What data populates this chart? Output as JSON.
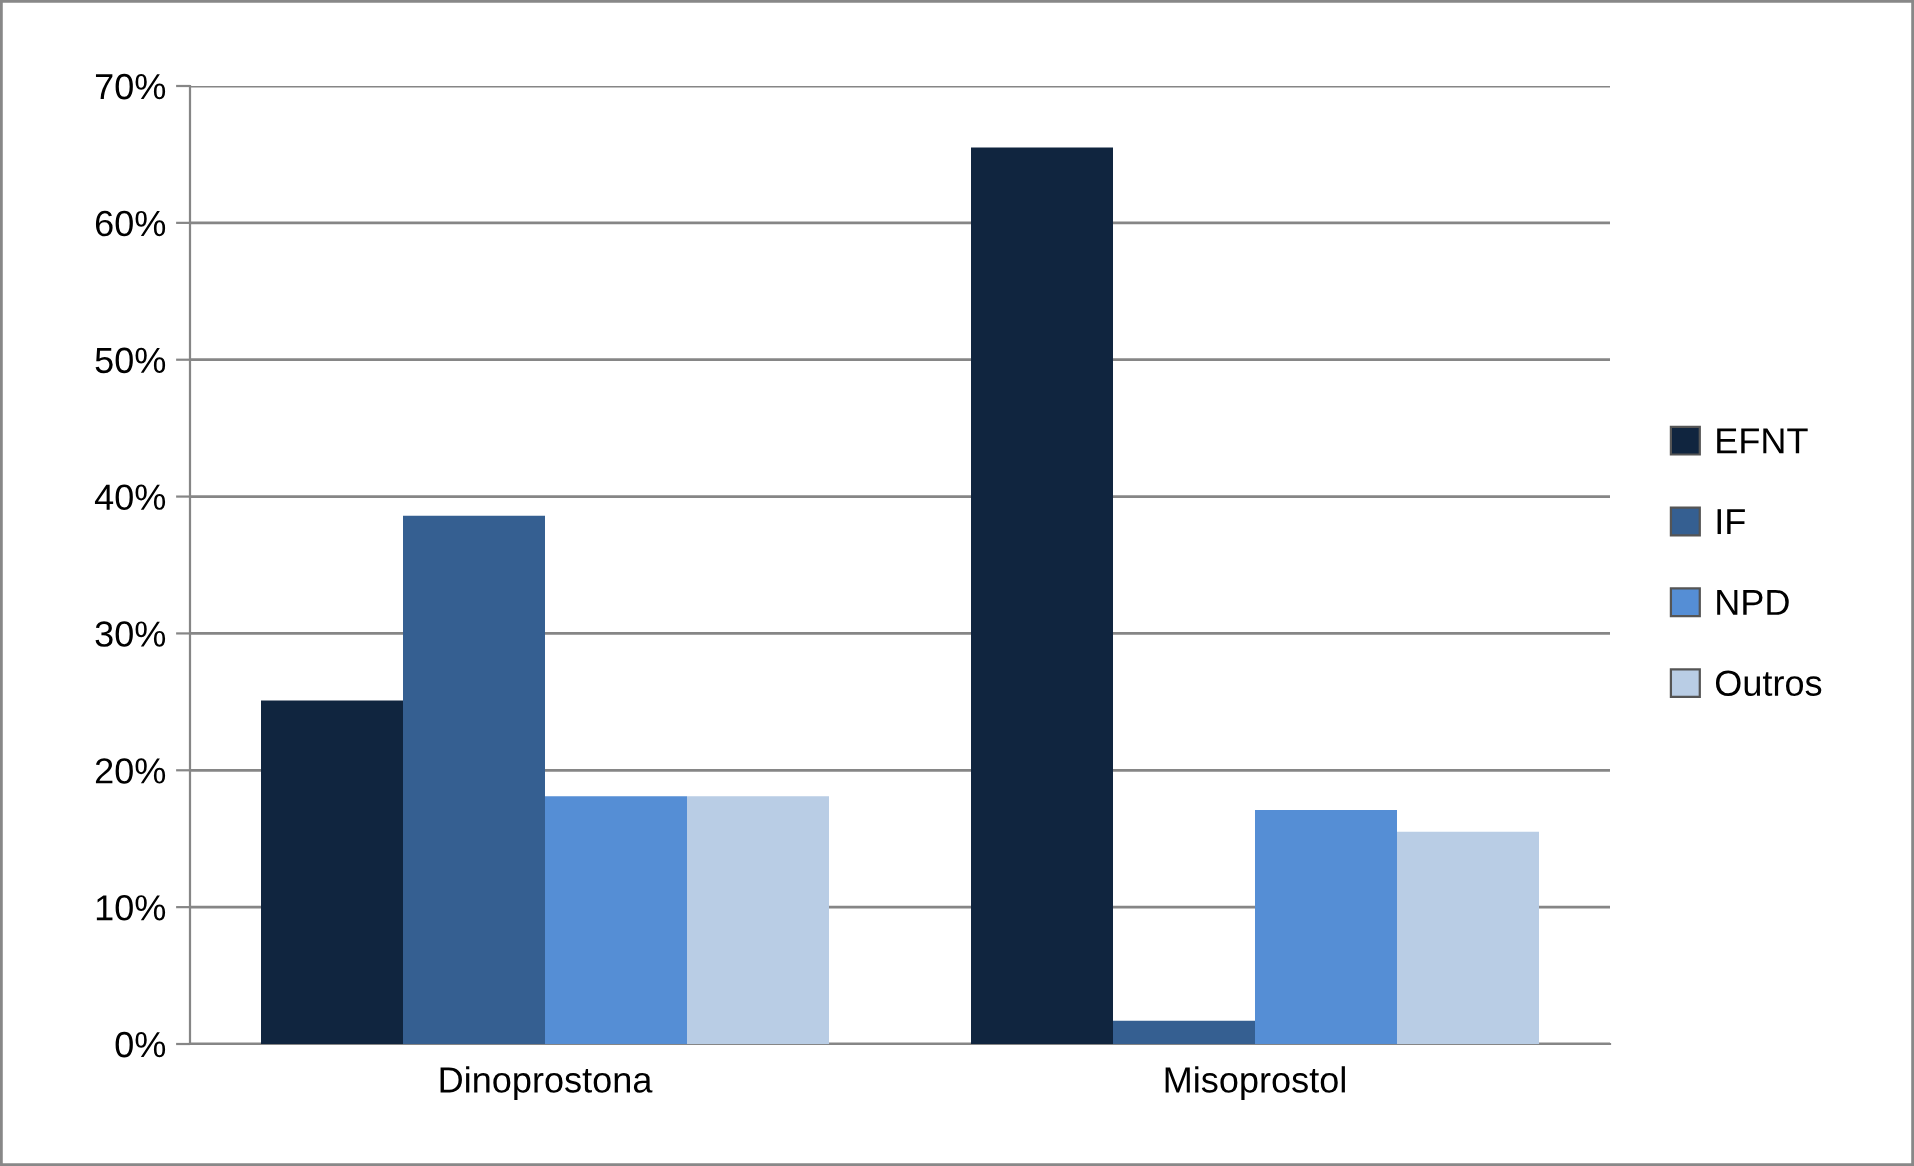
{
  "chart_data": {
    "type": "bar",
    "categories": [
      "Dinoprostona",
      "Misoprostol"
    ],
    "series": [
      {
        "name": "EFNT",
        "color": "#10253f",
        "values": [
          25.1,
          65.5
        ]
      },
      {
        "name": "IF",
        "color": "#355f91",
        "values": [
          38.6,
          1.7
        ]
      },
      {
        "name": "NPD",
        "color": "#558ed5",
        "values": [
          18.1,
          17.1
        ]
      },
      {
        "name": "Outros",
        "color": "#b9cde5",
        "values": [
          18.1,
          15.5
        ]
      }
    ],
    "ylim": [
      0,
      70
    ],
    "yticks": [
      {
        "value": 0,
        "label": "0%"
      },
      {
        "value": 10,
        "label": "10%"
      },
      {
        "value": 20,
        "label": "20%"
      },
      {
        "value": 30,
        "label": "30%"
      },
      {
        "value": 40,
        "label": "40%"
      },
      {
        "value": 50,
        "label": "50%"
      },
      {
        "value": 60,
        "label": "60%"
      },
      {
        "value": 70,
        "label": "70%"
      }
    ],
    "grid": "y",
    "legend": "right"
  }
}
